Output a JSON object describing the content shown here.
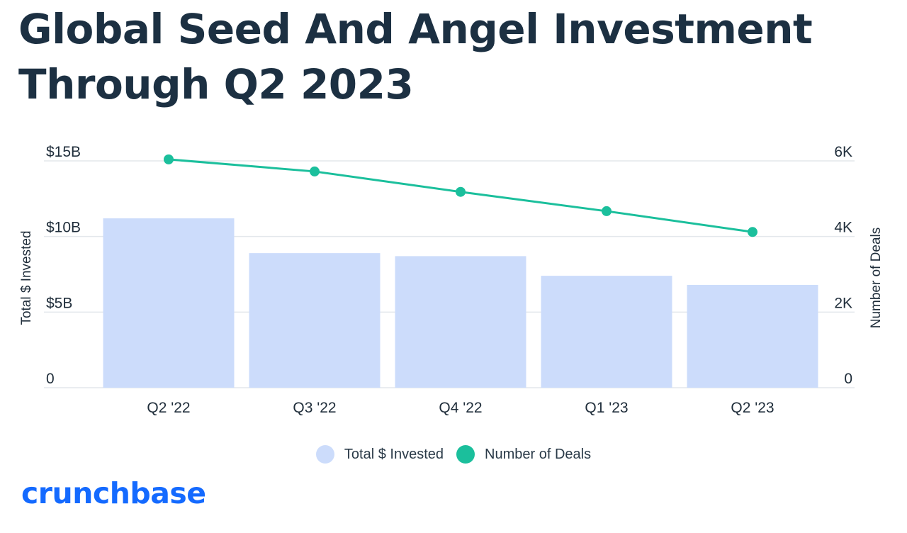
{
  "title": "Global Seed And Angel Investment Through Q2 2023",
  "brand": {
    "name": "crunchbase",
    "color": "#146aff"
  },
  "colors": {
    "bar": "#ccdcfb",
    "line": "#1bbf9c",
    "grid": "#e3e7ec",
    "text": "#1f2d3a",
    "title": "#1c3042"
  },
  "chart_data": {
    "type": "bar",
    "categories": [
      "Q2 '22",
      "Q3 '22",
      "Q4 '22",
      "Q1 '23",
      "Q2 '23"
    ],
    "series": [
      {
        "name": "Total $ Invested",
        "type": "bar",
        "axis": "left",
        "values": [
          11.2,
          8.9,
          8.7,
          7.4,
          6.8
        ]
      },
      {
        "name": "Number of Deals",
        "type": "line",
        "axis": "right",
        "values": [
          6040,
          5720,
          5180,
          4670,
          4120
        ]
      }
    ],
    "y_left": {
      "label": "Total $ Invested",
      "ylim": [
        0,
        15
      ],
      "ticks": [
        0,
        5,
        10,
        15
      ],
      "tick_labels": [
        "0",
        "$5B",
        "$10B",
        "$15B"
      ]
    },
    "y_right": {
      "label": "Number of Deals",
      "ylim": [
        0,
        6000
      ],
      "ticks": [
        0,
        2000,
        4000,
        6000
      ],
      "tick_labels": [
        "0",
        "2K",
        "4K",
        "6K"
      ]
    },
    "grid": true,
    "legend": "bottom-center"
  }
}
